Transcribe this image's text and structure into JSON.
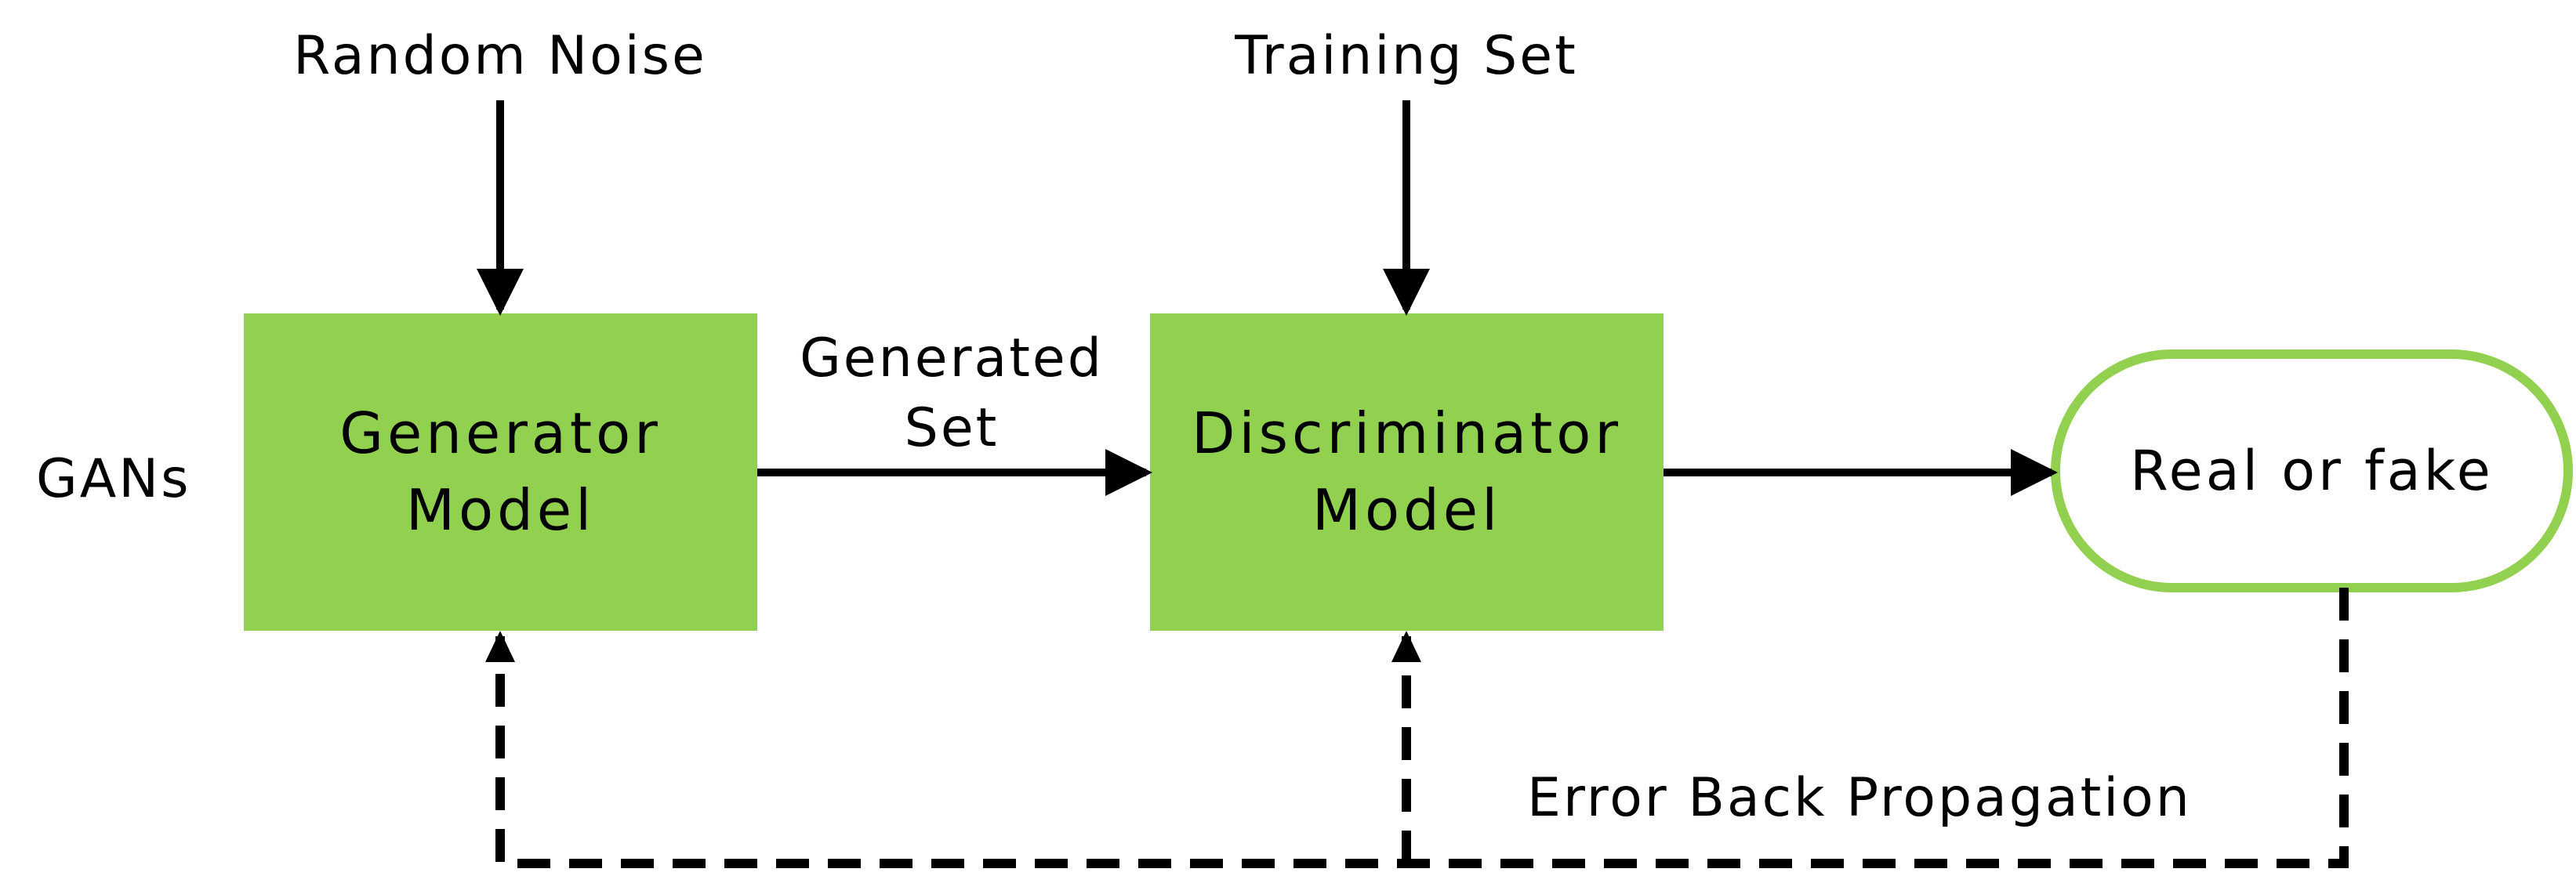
{
  "diagram": {
    "side_label": "GANs",
    "inputs": {
      "noise": "Random Noise",
      "training": "Training Set"
    },
    "generator": {
      "line1": "Generator",
      "line2": "Model"
    },
    "generated": {
      "line1": "Generated",
      "line2": "Set"
    },
    "discriminator": {
      "line1": "Discriminator",
      "line2": "Model"
    },
    "output": "Real or fake",
    "feedback": "Error Back Propagation"
  },
  "colors": {
    "box_fill": "#92d050",
    "terminal_border": "#92d050",
    "arrow": "#000000"
  },
  "icons": [
    "arrow-solid",
    "arrow-dashed"
  ]
}
